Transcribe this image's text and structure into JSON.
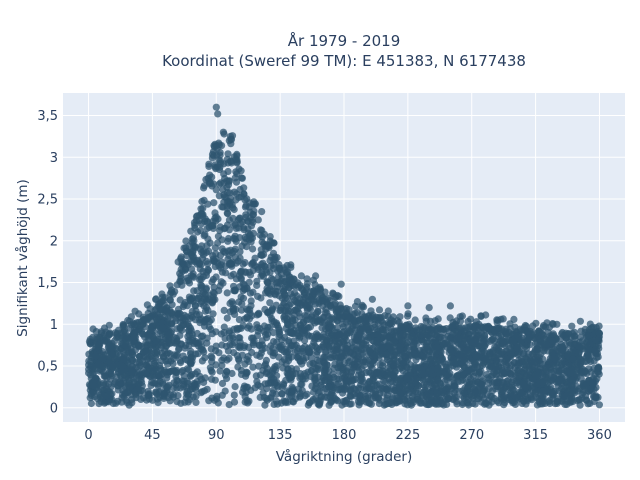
{
  "chart_data": {
    "type": "scatter",
    "title_lines": [
      "År 1979 - 2019",
      "Koordinat (Sweref 99 TM): E 451383, N 6177438"
    ],
    "xlabel": "Vågriktning (grader)",
    "ylabel": "Signifikant våghöjd (m)",
    "xlim": [
      -18,
      378
    ],
    "ylim": [
      -0.17,
      3.77
    ],
    "x_ticks": [
      0,
      45,
      90,
      135,
      180,
      225,
      270,
      315,
      360
    ],
    "x_tick_labels": [
      "0",
      "45",
      "90",
      "135",
      "180",
      "225",
      "270",
      "315",
      "360"
    ],
    "y_ticks": [
      0,
      0.5,
      1,
      1.5,
      2,
      2.5,
      3,
      3.5
    ],
    "y_tick_labels": [
      "0",
      "0,5",
      "1",
      "1,5",
      "2",
      "2,5",
      "3",
      "3,5"
    ],
    "grid": true,
    "marker_color": "#2f5570",
    "background_color": "#e5ecf6",
    "upper_envelope": {
      "x": [
        0,
        20,
        40,
        55,
        65,
        75,
        82,
        88,
        92,
        96,
        100,
        105,
        110,
        118,
        125,
        135,
        145,
        160,
        180,
        200,
        225,
        250,
        270,
        300,
        330,
        360
      ],
      "y": [
        0.82,
        0.9,
        1.1,
        1.35,
        1.7,
        2.2,
        2.6,
        3.0,
        3.25,
        3.3,
        3.2,
        2.95,
        2.6,
        2.3,
        2.0,
        1.75,
        1.55,
        1.4,
        1.2,
        1.1,
        1.0,
        0.95,
        1.0,
        0.95,
        0.9,
        0.92
      ]
    },
    "lower_envelope": {
      "x": [
        0,
        360
      ],
      "y": [
        0.03,
        0.03
      ]
    },
    "notable_points": [
      {
        "x": 90,
        "y": 3.6
      },
      {
        "x": 91,
        "y": 3.52
      },
      {
        "x": 95,
        "y": 3.3
      },
      {
        "x": 100,
        "y": 3.25
      },
      {
        "x": 122,
        "y": 2.35
      },
      {
        "x": 128,
        "y": 2.05
      },
      {
        "x": 150,
        "y": 1.58
      },
      {
        "x": 160,
        "y": 1.58
      },
      {
        "x": 178,
        "y": 1.48
      },
      {
        "x": 200,
        "y": 1.3
      },
      {
        "x": 225,
        "y": 1.22
      },
      {
        "x": 240,
        "y": 1.2
      },
      {
        "x": 255,
        "y": 1.22
      },
      {
        "x": 275,
        "y": 1.0
      },
      {
        "x": 313,
        "y": 0.98
      },
      {
        "x": 330,
        "y": 1.0
      },
      {
        "x": 350,
        "y": 0.94
      }
    ]
  }
}
